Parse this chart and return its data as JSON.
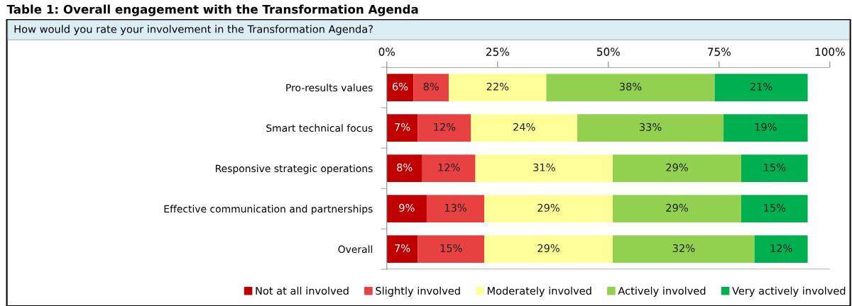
{
  "chart_data": {
    "type": "bar",
    "orientation": "horizontal",
    "stacked": true,
    "title": "Table 1: Overall engagement with the Transformation Agenda",
    "subtitle": "How would you rate your involvement in the Transformation Agenda?",
    "categories": [
      "Pro-results values",
      "Smart technical focus",
      "Responsive strategic operations",
      "Effective communication and partnerships",
      "Overall"
    ],
    "series": [
      {
        "name": "Not at all involved",
        "color": "#c00000",
        "values": [
          6,
          7,
          8,
          9,
          7
        ],
        "value_labels": [
          "6%",
          "7%",
          "8%",
          "9%",
          "7%"
        ]
      },
      {
        "name": "Slightly involved",
        "color": "#e84142",
        "values": [
          8,
          12,
          12,
          13,
          15
        ],
        "value_labels": [
          "8%",
          "12%",
          "12%",
          "13%",
          "15%"
        ]
      },
      {
        "name": "Moderately involved",
        "color": "#ffff99",
        "values": [
          22,
          24,
          31,
          29,
          29
        ],
        "value_labels": [
          "22%",
          "24%",
          "31%",
          "29%",
          "29%"
        ]
      },
      {
        "name": "Actively involved",
        "color": "#92d050",
        "values": [
          38,
          33,
          29,
          29,
          32
        ],
        "value_labels": [
          "38%",
          "33%",
          "29%",
          "29%",
          "32%"
        ]
      },
      {
        "name": "Very actively involved",
        "color": "#00b050",
        "values": [
          21,
          19,
          15,
          15,
          12
        ],
        "value_labels": [
          "21%",
          "19%",
          "15%",
          "15%",
          "12%"
        ]
      }
    ],
    "xlim": [
      0,
      100
    ],
    "xticks": [
      {
        "value": 0,
        "label": "0%"
      },
      {
        "value": 25,
        "label": "25%"
      },
      {
        "value": 50,
        "label": "50%"
      },
      {
        "value": 75,
        "label": "75%"
      },
      {
        "value": 100,
        "label": "100%"
      }
    ],
    "grid": false,
    "legend": "bottom"
  }
}
